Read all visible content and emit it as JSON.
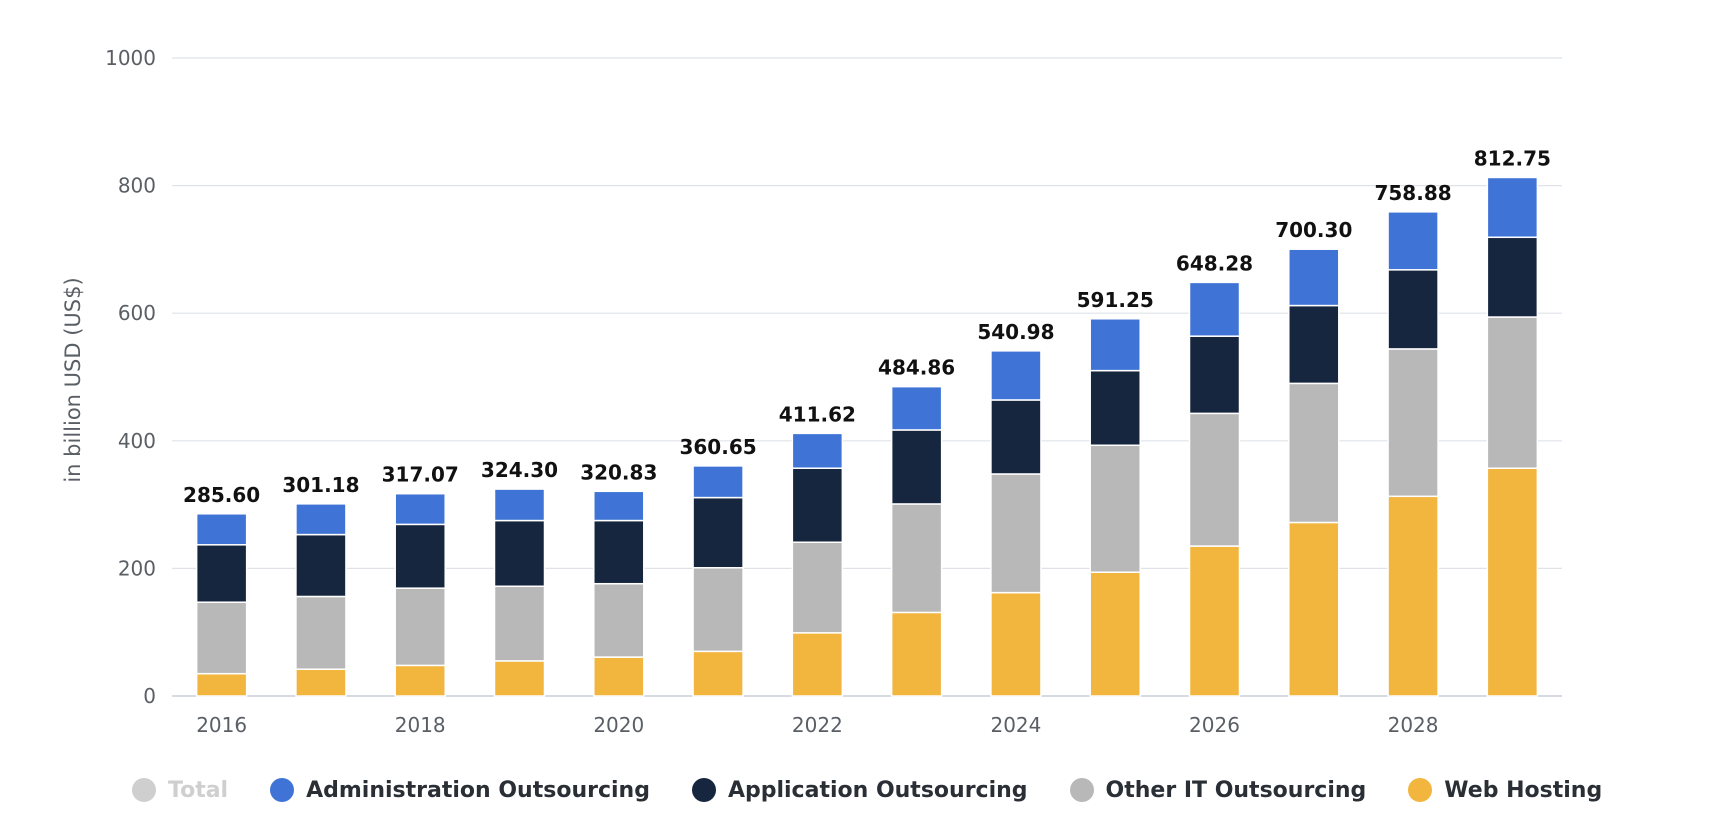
{
  "chart_data": {
    "type": "bar",
    "stacked": true,
    "ylabel": "in billion USD (US$)",
    "xlabel": "",
    "ylim": [
      0,
      1000
    ],
    "yticks": [
      0,
      200,
      400,
      600,
      800,
      1000
    ],
    "categories": [
      "2016",
      "2017",
      "2018",
      "2019",
      "2020",
      "2021",
      "2022",
      "2023",
      "2024",
      "2025",
      "2026",
      "2027",
      "2028",
      "2029"
    ],
    "xtick_labels_shown": [
      "2016",
      "2018",
      "2020",
      "2022",
      "2024",
      "2026",
      "2028"
    ],
    "totals": [
      "285.60",
      "301.18",
      "317.07",
      "324.30",
      "320.83",
      "360.65",
      "411.62",
      "484.86",
      "540.98",
      "591.25",
      "648.28",
      "700.30",
      "758.88",
      "812.75"
    ],
    "series": [
      {
        "name": "Web Hosting",
        "color": "#f2b53e",
        "values": [
          35,
          42,
          48,
          55,
          61,
          70,
          99,
          131,
          162,
          194,
          235,
          272,
          313,
          357
        ]
      },
      {
        "name": "Other IT Outsourcing",
        "color": "#b8b8b8",
        "values": [
          112,
          114,
          121,
          117,
          115,
          131,
          142,
          170,
          186,
          199,
          208,
          218,
          231,
          237
        ]
      },
      {
        "name": "Application Outsourcing",
        "color": "#16263e",
        "values": [
          90,
          97,
          100,
          103,
          99,
          110,
          116,
          116,
          116,
          117,
          121,
          122,
          124,
          125
        ]
      },
      {
        "name": "Administration Outsourcing",
        "color": "#3f74d6",
        "values": [
          48.6,
          48.18,
          48.07,
          49.3,
          45.83,
          49.65,
          54.62,
          67.86,
          76.98,
          81.25,
          84.28,
          88.3,
          90.88,
          93.75
        ]
      }
    ]
  },
  "legend": {
    "items": [
      {
        "label": "Total",
        "color": "#cfcfcf",
        "inactive": true
      },
      {
        "label": "Administration Outsourcing",
        "color": "#3f74d6",
        "inactive": false
      },
      {
        "label": "Application Outsourcing",
        "color": "#16263e",
        "inactive": false
      },
      {
        "label": "Other IT Outsourcing",
        "color": "#b8b8b8",
        "inactive": false
      },
      {
        "label": "Web Hosting",
        "color": "#f2b53e",
        "inactive": false
      }
    ]
  }
}
